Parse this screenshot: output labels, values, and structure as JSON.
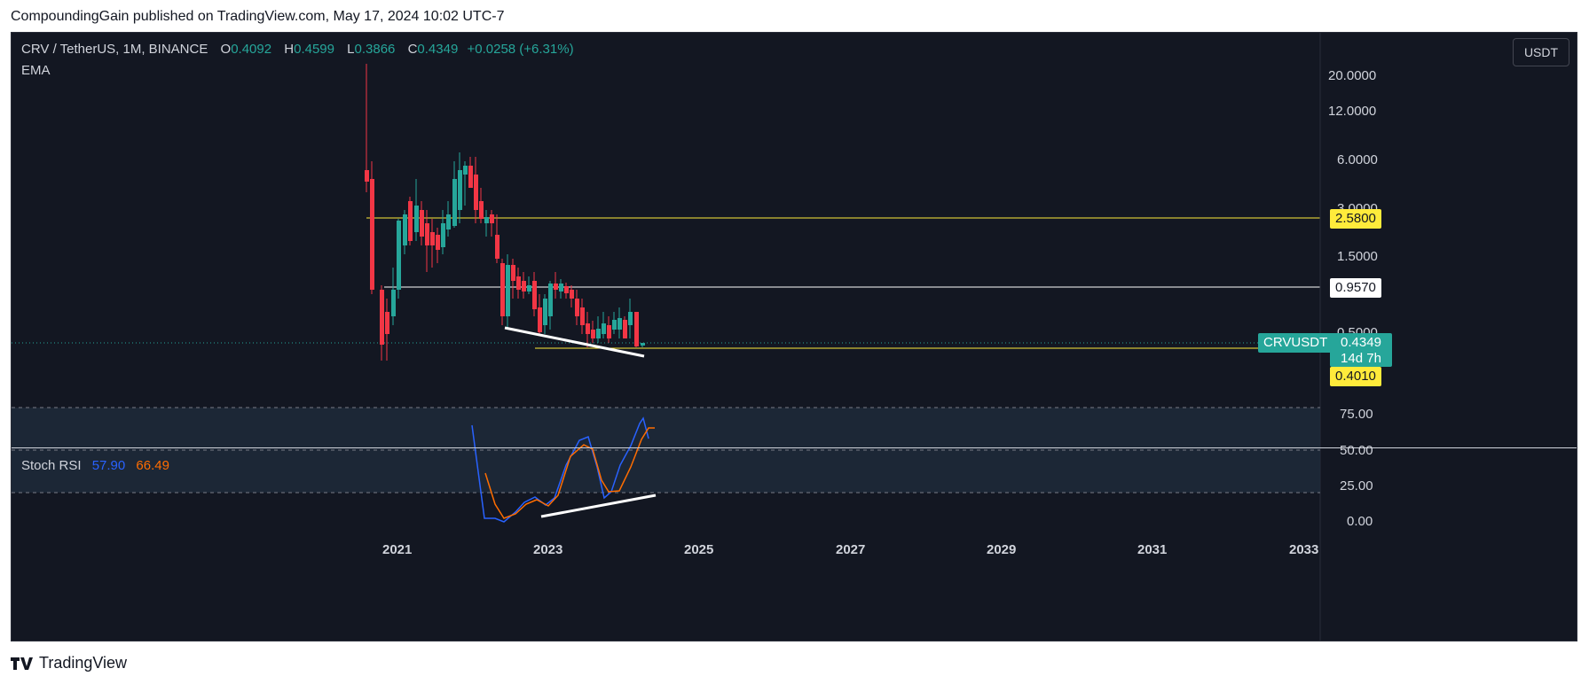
{
  "header": {
    "publisher": "CompoundingGain published on TradingView.com, May 17, 2024 10:02 UTC-7"
  },
  "legend": {
    "symbol": "CRV / TetherUS, 1M, BINANCE",
    "o_key": "O",
    "o_val": "0.4092",
    "h_key": "H",
    "h_val": "0.4599",
    "l_key": "L",
    "l_val": "0.3866",
    "c_key": "C",
    "c_val": "0.4349",
    "change": "+0.0258 (+6.31%)",
    "indicator": "EMA"
  },
  "currency_button": "USDT",
  "price_axis": {
    "ticks": [
      "20.0000",
      "12.0000",
      "6.0000",
      "3.0000",
      "1.5000",
      "0.5000"
    ],
    "tags": {
      "resistance_high": "2.5800",
      "resistance_mid": "0.9570",
      "symbol": "CRVUSDT",
      "last_price": "0.4349",
      "countdown": "14d 7h",
      "support": "0.4010"
    }
  },
  "stoch_rsi": {
    "label": "Stoch RSI",
    "k": "57.90",
    "d": "66.49",
    "ticks": [
      "75.00",
      "50.00",
      "25.00",
      "0.00"
    ]
  },
  "time_axis": [
    "2021",
    "2023",
    "2025",
    "2027",
    "2029",
    "2031",
    "2033"
  ],
  "colors": {
    "up": "#26a69a",
    "down": "#f23645",
    "level_yellow": "#ffeb3b",
    "level_white": "#ffffff",
    "k_line": "#2962ff",
    "d_line": "#ff6d00"
  },
  "footer": {
    "brand": "TradingView"
  }
}
